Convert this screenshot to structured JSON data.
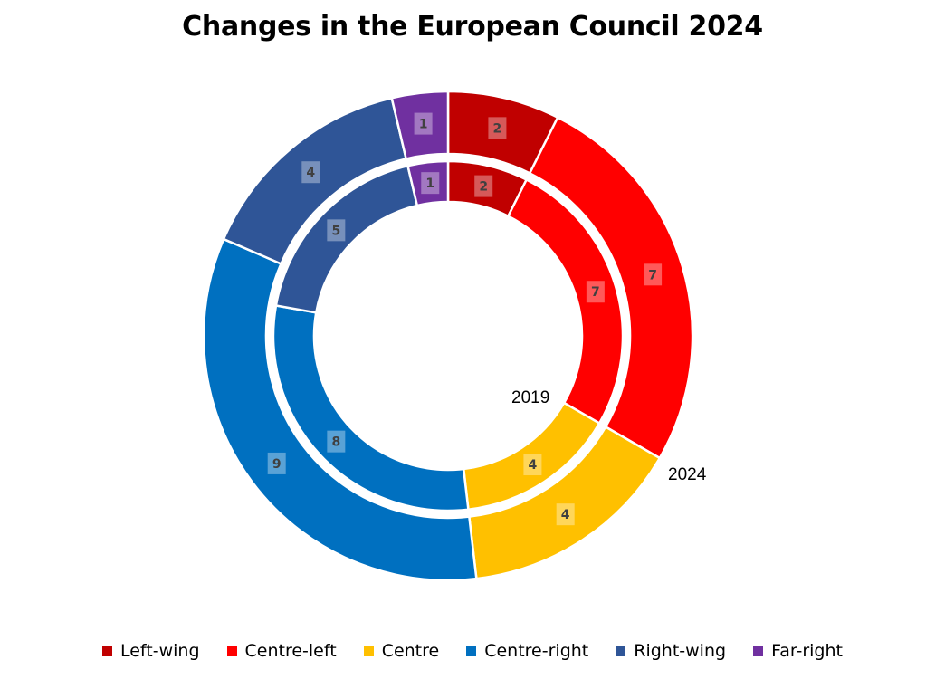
{
  "chart_data": {
    "type": "donut",
    "title": "Changes in the European Council 2024",
    "categories": [
      "Left-wing",
      "Centre-left",
      "Centre",
      "Centre-right",
      "Right-wing",
      "Far-right"
    ],
    "colors": [
      "#C00000",
      "#FF0000",
      "#FFC000",
      "#0070C0",
      "#2F5597",
      "#7030A0"
    ],
    "series": [
      {
        "name": "2019",
        "ring": "inner",
        "values": [
          2,
          7,
          4,
          8,
          5,
          1
        ]
      },
      {
        "name": "2024",
        "ring": "outer",
        "values": [
          2,
          7,
          4,
          9,
          4,
          1
        ]
      }
    ],
    "legend": {
      "position": "bottom",
      "items": [
        "Left-wing",
        "Centre-left",
        "Centre",
        "Centre-right",
        "Right-wing",
        "Far-right"
      ]
    }
  }
}
